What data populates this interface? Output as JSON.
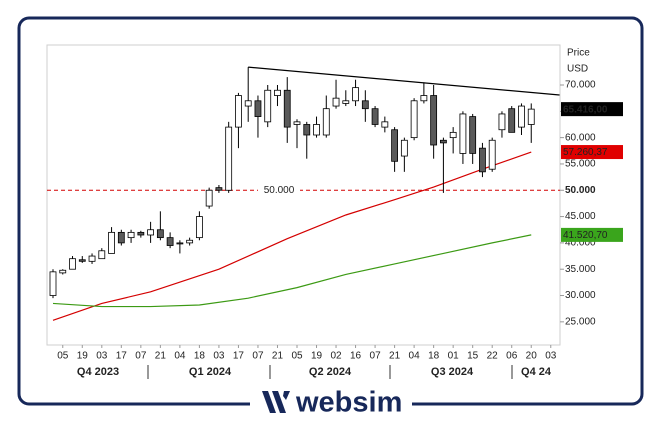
{
  "chart_data": {
    "type": "candlestick",
    "axis_title": [
      "Price",
      "USD"
    ],
    "categories": [
      null,
      "05",
      null,
      "19",
      null,
      "03",
      null,
      "17",
      null,
      "07",
      null,
      "21",
      null,
      "04",
      null,
      "18",
      null,
      "03",
      null,
      "17",
      null,
      "07",
      null,
      "21",
      null,
      "05",
      null,
      "19",
      null,
      "02",
      null,
      "16",
      null,
      "07",
      null,
      "21",
      null,
      "04",
      null,
      "18",
      null,
      "01",
      null,
      "15",
      null,
      "22",
      null,
      "06",
      null,
      "20",
      null,
      "03"
    ],
    "quarters": [
      "Q4 2023",
      "Q1 2024",
      "Q2 2024",
      "Q3 2024",
      "Q4 24"
    ],
    "open": [
      30000,
      34300,
      35000,
      36800,
      36500,
      37000,
      38000,
      42000,
      41000,
      42000,
      41500,
      42500,
      41000,
      40000,
      40000,
      41000,
      47000,
      50500,
      50000,
      62000,
      66000,
      67000,
      63000,
      68000,
      69000,
      62500,
      62500,
      60500,
      60500,
      66000,
      66500,
      67000,
      67000,
      65500,
      62000,
      61500,
      56500,
      60000,
      67000,
      68000,
      59500,
      60000,
      57000,
      64000,
      58000,
      54000,
      61500,
      65500,
      62000,
      62500,
      null,
      null
    ],
    "high": [
      35000,
      35000,
      37500,
      37500,
      38000,
      39000,
      43000,
      42500,
      42500,
      42300,
      44000,
      46000,
      42000,
      40500,
      41000,
      46000,
      50500,
      51000,
      63000,
      68500,
      73400,
      68000,
      70000,
      70000,
      71500,
      63500,
      63000,
      64000,
      68000,
      71000,
      69000,
      71000,
      69000,
      66000,
      64000,
      62000,
      60000,
      67500,
      70500,
      70000,
      60000,
      62000,
      65000,
      64500,
      59000,
      60000,
      65000,
      66000,
      66500,
      66500,
      null,
      null
    ],
    "low": [
      29500,
      34000,
      35000,
      36200,
      36000,
      37000,
      38000,
      39500,
      40000,
      41000,
      40000,
      40500,
      39000,
      38000,
      39500,
      40500,
      46500,
      49500,
      49500,
      58000,
      63000,
      60000,
      62000,
      66000,
      59000,
      58000,
      56000,
      60000,
      60000,
      65500,
      66000,
      66000,
      63000,
      62000,
      61000,
      53500,
      53500,
      59500,
      66500,
      56000,
      49500,
      57000,
      55000,
      55000,
      52500,
      53500,
      60000,
      61000,
      60500,
      59000,
      null,
      null
    ],
    "close": [
      34500,
      34800,
      37000,
      36500,
      37500,
      38500,
      42000,
      40000,
      42000,
      41500,
      42500,
      41000,
      39500,
      39800,
      40500,
      45000,
      50000,
      50000,
      62000,
      68000,
      67000,
      64000,
      69000,
      69000,
      62000,
      63000,
      60500,
      62500,
      65500,
      67500,
      67000,
      69500,
      65500,
      62500,
      63000,
      55500,
      59500,
      67000,
      68000,
      58600,
      59000,
      61000,
      64500,
      57000,
      53500,
      59500,
      64500,
      61000,
      66000,
      65416,
      null,
      null
    ],
    "up_color": "#ffffff",
    "down_color": "#5a5a5a",
    "lines": [
      {
        "color": "#d40000",
        "x": [
          0,
          5,
          10,
          17,
          24,
          30,
          35,
          39,
          44,
          49
        ],
        "values": [
          25300,
          28500,
          30700,
          35000,
          40800,
          45300,
          48200,
          50600,
          54000,
          57260.37
        ]
      },
      {
        "color": "#3c9a14",
        "x": [
          0,
          5,
          10,
          15,
          20,
          25,
          30,
          35,
          40,
          45,
          49
        ],
        "values": [
          28500,
          27900,
          27900,
          28200,
          29500,
          31500,
          34000,
          36000,
          38000,
          40000,
          41520.7
        ]
      }
    ],
    "trendline": {
      "color": "#000000",
      "x": [
        20,
        51.9
      ],
      "values": [
        73400,
        68100
      ]
    },
    "hline": {
      "value": 50000,
      "label": "50.000",
      "color": "#d40000"
    },
    "price_labels": [
      {
        "value": 65416,
        "label": "65.416,00",
        "color": "#000000"
      },
      {
        "value": 57260.37,
        "label": "57.260,37",
        "color": "#e00000"
      },
      {
        "value": 41520.7,
        "label": "41.520,70",
        "color": "#3aa51c"
      }
    ],
    "ylim": [
      20600,
      77600
    ],
    "yticks": [
      {
        "value": 25000,
        "label": "25.000"
      },
      {
        "value": 30000,
        "label": "30.000"
      },
      {
        "value": 35000,
        "label": "35.000"
      },
      {
        "value": 40000,
        "label": "40.000"
      },
      {
        "value": 45000,
        "label": "45.000"
      },
      {
        "value": 50000,
        "label": "50.000"
      },
      {
        "value": 55000,
        "label": "55.000"
      },
      {
        "value": 60000,
        "label": "60.000"
      },
      {
        "value": 65000,
        "label": "65.000"
      },
      {
        "value": 70000,
        "label": "70.000"
      }
    ],
    "logo": "websim"
  }
}
